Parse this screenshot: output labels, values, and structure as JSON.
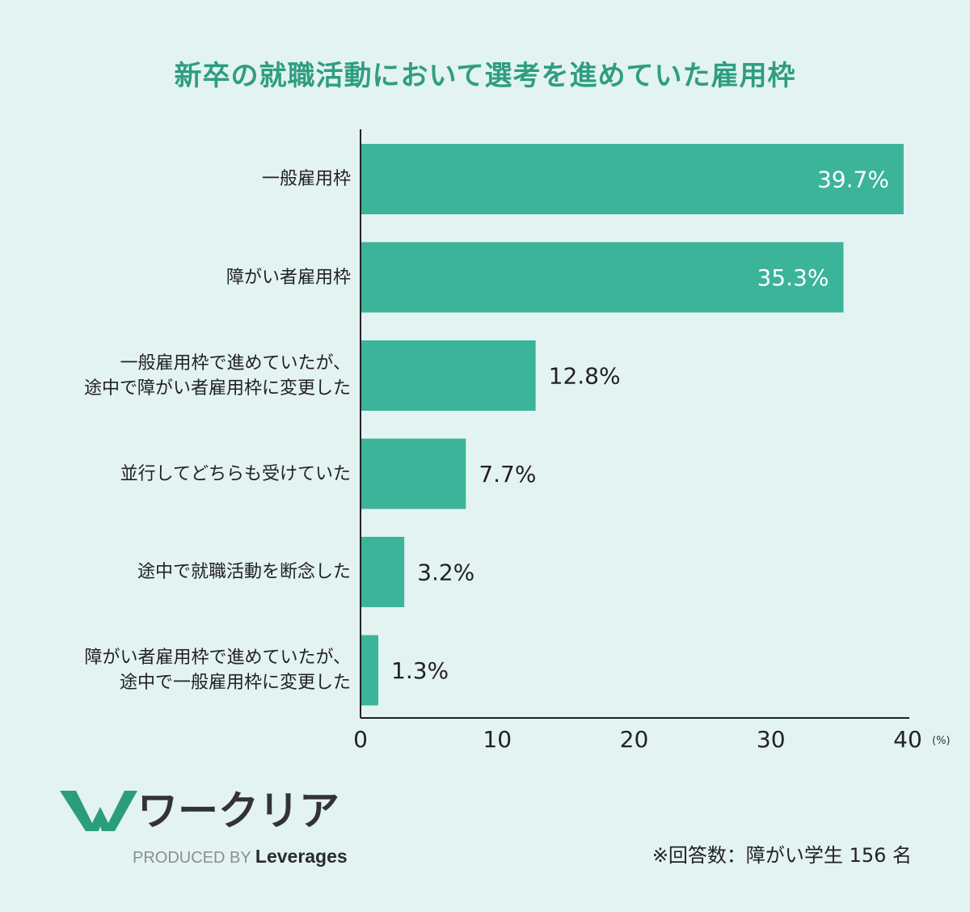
{
  "chart_data": {
    "type": "bar",
    "orientation": "horizontal",
    "title": "新卒の就職活動において選考を進めていた雇用枠",
    "categories": [
      [
        "一般雇用枠"
      ],
      [
        "障がい者雇用枠"
      ],
      [
        "一般雇用枠で進めていたが、",
        "途中で障がい者雇用枠に変更した"
      ],
      [
        "並行してどちらも受けていた"
      ],
      [
        "途中で就職活動を断念した"
      ],
      [
        "障がい者雇用枠で進めていたが、",
        "途中で一般雇用枠に変更した"
      ]
    ],
    "values": [
      39.7,
      35.3,
      12.8,
      7.7,
      3.2,
      1.3
    ],
    "data_labels": [
      "39.7%",
      "35.3%",
      "12.8%",
      "7.7%",
      "3.2%",
      "1.3%"
    ],
    "xlim": [
      0,
      40
    ],
    "xticks": [
      "0",
      "10",
      "20",
      "30",
      "40"
    ],
    "xunit": "(%)",
    "grid": false,
    "bar_color": "#3bb49a",
    "title_color": "#2e9e80"
  },
  "footer": {
    "brand": "ワークリア",
    "produced_by": "PRODUCED BY",
    "company": "Leverages",
    "note": "※回答数：障がい学生 156 名"
  }
}
